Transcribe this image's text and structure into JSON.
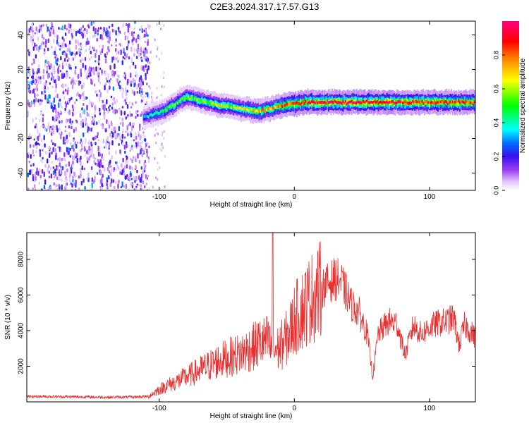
{
  "title": "C2E3.2024.317.17.57.G13",
  "chart_data": [
    {
      "type": "heatmap",
      "xlabel": "Height of straight line (km)",
      "ylabel": "Frequency (Hz)",
      "xlim": [
        -198,
        134
      ],
      "ylim": [
        -50,
        48
      ],
      "xticks": [
        -100,
        0,
        100
      ],
      "xtick_labels": [
        "-100",
        "0",
        "100"
      ],
      "yticks": [
        -40,
        -20,
        0,
        20,
        40
      ],
      "ytick_labels": [
        "-40",
        "-20",
        "0",
        "20",
        "40"
      ],
      "grid": false,
      "colorbar": {
        "label": "Normalized spectral amplitude",
        "range": [
          0,
          1
        ],
        "ticks": [
          0.0,
          0.2,
          0.4,
          0.6,
          0.8
        ],
        "tick_labels": [
          "0.0",
          "0.2",
          "0.4",
          "0.6",
          "0.8"
        ],
        "colors": [
          "#ffffff",
          "#e0c0ff",
          "#8a2be2",
          "#3a10f0",
          "#0066ff",
          "#00ffff",
          "#00ff00",
          "#ffff00",
          "#ff8000",
          "#ff0000",
          "#ff0080"
        ]
      },
      "noise_region": {
        "x": [
          -198,
          -108
        ],
        "amplitude": 0.2
      },
      "ridge": {
        "x": [
          -112,
          -105,
          -100,
          -95,
          -90,
          -85,
          -80,
          -75,
          -70,
          -65,
          -60,
          -55,
          -50,
          -45,
          -40,
          -35,
          -30,
          -25,
          -20,
          -15,
          -10,
          -5,
          0,
          5,
          10,
          20,
          30,
          40,
          50,
          60,
          70,
          80,
          90,
          100,
          110,
          120,
          134
        ],
        "freq": [
          -8,
          -6,
          -5,
          -3,
          -1,
          2,
          4,
          3,
          2,
          1,
          0,
          -1,
          -1,
          -2,
          -3,
          -3,
          -4,
          -4,
          -3,
          -2,
          -1,
          0,
          0,
          1,
          1,
          1,
          1,
          1,
          1,
          1,
          1,
          1,
          1,
          1,
          1,
          1,
          1
        ],
        "amplitude": [
          0.3,
          0.4,
          0.45,
          0.5,
          0.55,
          0.5,
          0.6,
          0.55,
          0.6,
          0.55,
          0.6,
          0.65,
          0.6,
          0.6,
          0.65,
          0.65,
          0.7,
          0.75,
          0.7,
          0.75,
          0.8,
          0.85,
          0.9,
          0.9,
          0.9,
          0.9,
          0.95,
          0.95,
          0.95,
          0.95,
          0.95,
          0.9,
          0.9,
          0.9,
          0.88,
          0.88,
          0.85
        ]
      }
    },
    {
      "type": "line",
      "xlabel": "Height of straight line (km)",
      "ylabel": "SNR (10 * v/v)",
      "xlim": [
        -198,
        134
      ],
      "ylim": [
        0,
        9500
      ],
      "xticks": [
        -100,
        0,
        100
      ],
      "xtick_labels": [
        "-100",
        "0",
        "100"
      ],
      "yticks": [
        2000,
        4000,
        6000,
        8000
      ],
      "ytick_labels": [
        "2000",
        "4000",
        "6000",
        "8000"
      ],
      "grid": false,
      "series": [
        {
          "color": "#e83030",
          "x": [
            -198,
            -180,
            -160,
            -140,
            -120,
            -108,
            -102,
            -95,
            -88,
            -80,
            -72,
            -64,
            -56,
            -48,
            -40,
            -32,
            -26,
            -20,
            -16,
            -12,
            -8,
            -4,
            0,
            6,
            12,
            18,
            24,
            30,
            34,
            38,
            42,
            48,
            54,
            58,
            62,
            66,
            70,
            76,
            82,
            88,
            94,
            100,
            106,
            112,
            118,
            122,
            126,
            130,
            134
          ],
          "y": [
            300,
            300,
            280,
            260,
            270,
            300,
            600,
            900,
            1100,
            1400,
            1700,
            2000,
            2300,
            2500,
            2700,
            3000,
            3300,
            3400,
            2800,
            3000,
            3300,
            3800,
            4600,
            5200,
            5800,
            6200,
            6600,
            6900,
            6800,
            6200,
            5500,
            5000,
            3800,
            1400,
            3800,
            4200,
            4500,
            4400,
            2600,
            4300,
            3800,
            4200,
            4400,
            4500,
            4700,
            3200,
            4300,
            4000,
            3600
          ]
        }
      ],
      "annotations": [
        {
          "x": -16,
          "y": 9500,
          "label": ""
        }
      ]
    }
  ]
}
